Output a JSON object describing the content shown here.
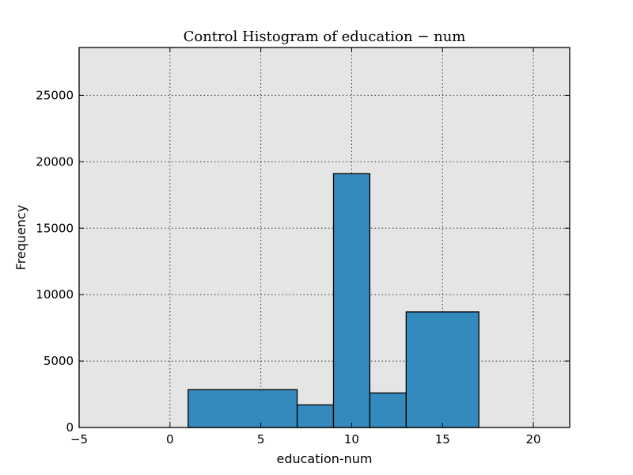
{
  "chart_data": {
    "type": "bar",
    "title": "Control Histogram of education − num",
    "xlabel": "education-num",
    "ylabel": "Frequency",
    "xlim": [
      -5,
      22
    ],
    "ylim": [
      0,
      28600
    ],
    "xticks": [
      -5,
      0,
      5,
      10,
      15,
      20
    ],
    "xtick_labels": [
      "−5",
      "0",
      "5",
      "10",
      "15",
      "20"
    ],
    "yticks": [
      0,
      5000,
      10000,
      15000,
      20000,
      25000
    ],
    "ytick_labels": [
      "0",
      "5000",
      "10000",
      "15000",
      "20000",
      "25000"
    ],
    "grid": true,
    "bins": [
      {
        "x0": 1,
        "x1": 7,
        "value": 2850
      },
      {
        "x0": 7,
        "x1": 9,
        "value": 1700
      },
      {
        "x0": 9,
        "x1": 11,
        "value": 19100
      },
      {
        "x0": 11,
        "x1": 13,
        "value": 2600
      },
      {
        "x0": 13,
        "x1": 17,
        "value": 8700
      }
    ]
  },
  "colors": {
    "bar_fill": "#348abd",
    "plot_background": "#e5e5e5",
    "bar_edge": "#000000"
  }
}
